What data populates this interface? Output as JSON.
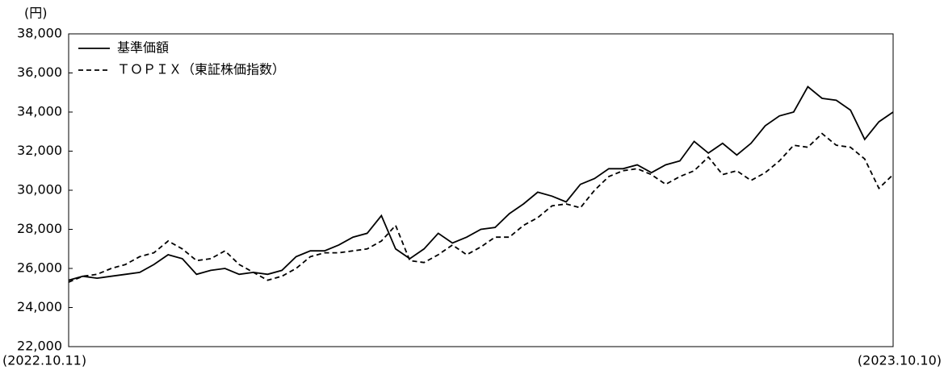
{
  "chart_data": {
    "type": "line",
    "y_label": "(円)",
    "categories": [
      "(2022.10.11)",
      null,
      null,
      null,
      null,
      null,
      null,
      null,
      null,
      null,
      null,
      null,
      null,
      null,
      null,
      null,
      null,
      null,
      null,
      null,
      null,
      null,
      null,
      null,
      null,
      null,
      null,
      null,
      null,
      null,
      null,
      null,
      null,
      null,
      null,
      null,
      null,
      null,
      null,
      null,
      null,
      null,
      null,
      null,
      null,
      null,
      null,
      null,
      null,
      null,
      null,
      null,
      null,
      null,
      null,
      null,
      null,
      null,
      "(2023.10.10)"
    ],
    "series": [
      {
        "name": "基準価額",
        "color": "#000000",
        "dash": "solid",
        "values": [
          25400,
          25600,
          25500,
          25600,
          25700,
          25800,
          26200,
          26700,
          26500,
          25700,
          25900,
          26000,
          25700,
          25800,
          25700,
          25900,
          26600,
          26900,
          26900,
          27200,
          27600,
          27800,
          28700,
          27000,
          26500,
          27000,
          27800,
          27300,
          27600,
          28000,
          28100,
          28800,
          29300,
          29900,
          29700,
          29400,
          30300,
          30600,
          31100,
          31100,
          31300,
          30900,
          31300,
          31500,
          32500,
          31900,
          32400,
          31800,
          32400,
          33300,
          33800,
          34000,
          35300,
          34700,
          34600,
          34100,
          32600,
          33500,
          34000
        ]
      },
      {
        "name": "ＴＯＰＩＸ（東証株価指数）",
        "color": "#000000",
        "dash": "dashed",
        "values": [
          25300,
          25600,
          25700,
          26000,
          26200,
          26600,
          26800,
          27400,
          27000,
          26400,
          26500,
          26900,
          26200,
          25800,
          25400,
          25600,
          26000,
          26600,
          26800,
          26800,
          26900,
          27000,
          27400,
          28200,
          26400,
          26300,
          26700,
          27200,
          26700,
          27100,
          27600,
          27600,
          28200,
          28600,
          29200,
          29300,
          29100,
          30000,
          30700,
          31000,
          31100,
          30800,
          30300,
          30700,
          31000,
          31700,
          30800,
          31000,
          30500,
          30900,
          31500,
          32300,
          32200,
          32900,
          32300,
          32200,
          31600,
          30100,
          30800
        ]
      }
    ],
    "ylim": [
      22000,
      38000
    ],
    "yticks": [
      {
        "value": 22000,
        "label": "22,000"
      },
      {
        "value": 24000,
        "label": "24,000"
      },
      {
        "value": 26000,
        "label": "26,000"
      },
      {
        "value": 28000,
        "label": "28,000"
      },
      {
        "value": 30000,
        "label": "30,000"
      },
      {
        "value": 32000,
        "label": "32,000"
      },
      {
        "value": 34000,
        "label": "34,000"
      },
      {
        "value": 36000,
        "label": "36,000"
      },
      {
        "value": 38000,
        "label": "38,000"
      }
    ],
    "grid": false,
    "legend": "top-left"
  }
}
